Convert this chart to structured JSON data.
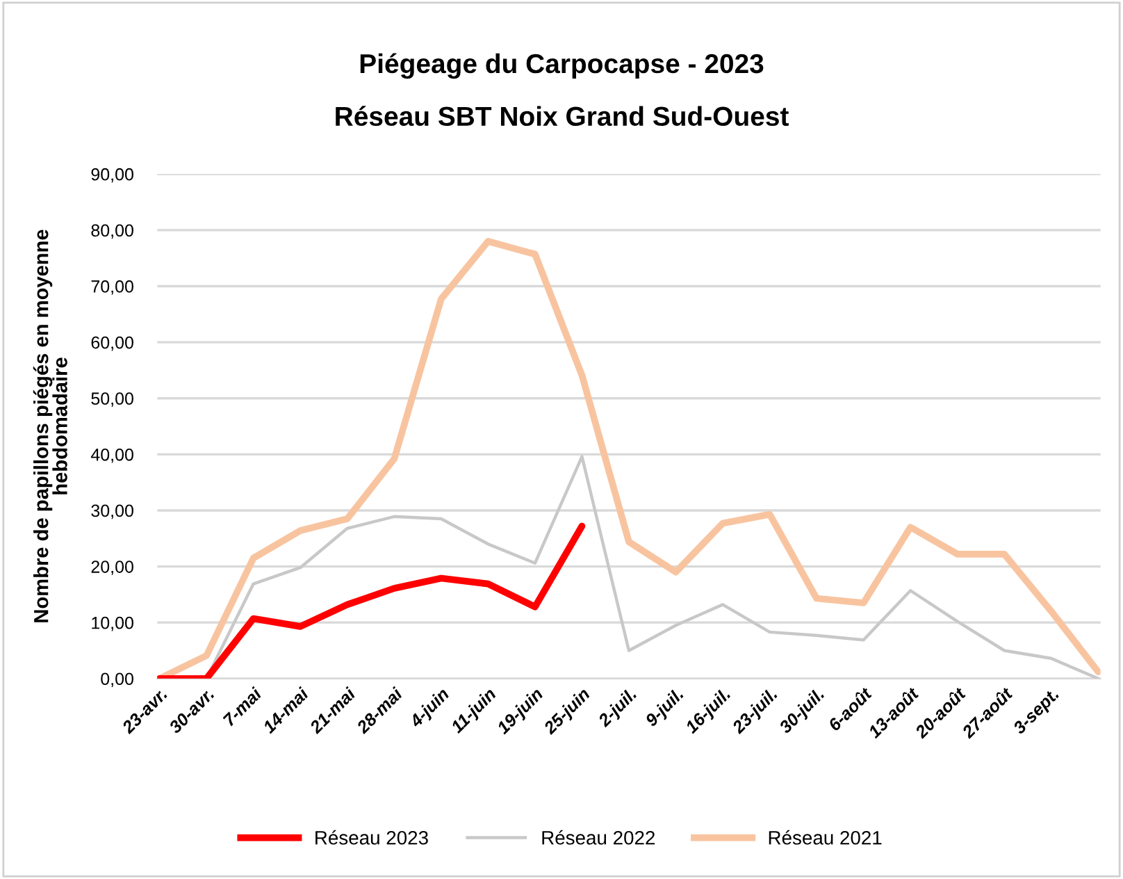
{
  "chart_data": {
    "type": "line",
    "title": "Piégeage du Carpocapse - 2023",
    "subtitle": "Réseau SBT Noix Grand Sud-Ouest",
    "ylabel": "Nombre de papillons piégés en moyenne\nhebdomadaire",
    "categories": [
      "23-avr.",
      "30-avr.",
      "7-mai",
      "14-mai",
      "21-mai",
      "28-mai",
      "4-juin",
      "11-juin",
      "19-juin",
      "25-juin",
      "2-juil.",
      "9-juil.",
      "16-juil.",
      "23-juil.",
      "30-juil.",
      "6-août",
      "13-août",
      "20-août",
      "27-août",
      "3-sept.",
      null
    ],
    "series": [
      {
        "name": "Réseau 2023",
        "color": "#ff0000",
        "values": [
          0,
          0,
          10.7,
          9.3,
          13.2,
          16.1,
          17.9,
          16.9,
          12.8,
          27.2,
          null,
          null,
          null,
          null,
          null,
          null,
          null,
          null,
          null,
          null,
          null
        ]
      },
      {
        "name": "Réseau 2022",
        "color": "#c8c8c8",
        "values": [
          0,
          0,
          16.9,
          19.8,
          26.8,
          28.9,
          28.5,
          24.0,
          20.6,
          39.6,
          5.0,
          9.5,
          13.2,
          8.3,
          7.7,
          6.9,
          15.7,
          10.2,
          5.0,
          3.6,
          0
        ]
      },
      {
        "name": "Réseau 2021",
        "color": "#f8c4a0",
        "values": [
          0,
          4.1,
          21.5,
          26.4,
          28.5,
          39.2,
          67.7,
          78.0,
          75.7,
          54.1,
          24.4,
          19.0,
          27.7,
          29.3,
          14.3,
          13.5,
          27.0,
          22.2,
          22.2,
          12.0,
          1.2
        ]
      }
    ],
    "ylim": [
      0,
      90
    ],
    "yticks": [
      {
        "value": 0,
        "label": "0,00"
      },
      {
        "value": 10,
        "label": "10,00"
      },
      {
        "value": 20,
        "label": "20,00"
      },
      {
        "value": 30,
        "label": "30,00"
      },
      {
        "value": 40,
        "label": "40,00"
      },
      {
        "value": 50,
        "label": "50,00"
      },
      {
        "value": 60,
        "label": "60,00"
      },
      {
        "value": 70,
        "label": "70,00"
      },
      {
        "value": 80,
        "label": "80,00"
      },
      {
        "value": 90,
        "label": "90,00"
      }
    ],
    "grid": "y",
    "legend": "bottom",
    "marker": "none",
    "line_style": "solid"
  }
}
